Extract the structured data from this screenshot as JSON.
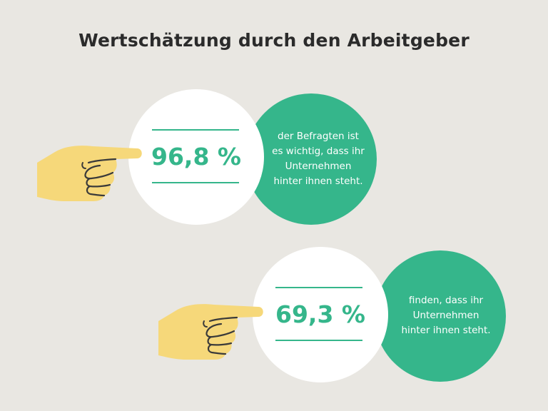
{
  "title": "Wertschätzung durch den Arbeitgeber",
  "stats": [
    {
      "value": "96,8 %",
      "text": "der Befragten ist\nes wichtig, dass ihr\nUnternehmen\nhinter ihnen steht."
    },
    {
      "value": "69,3 %",
      "text": "finden, dass ihr\nUnternehmen\nhinter ihnen steht."
    }
  ],
  "colors": {
    "background": "#e9e7e2",
    "accent_green": "#35b68b",
    "hand_yellow": "#f6d87a",
    "title": "#2b2b2b"
  },
  "icons": [
    "pointing-hand-icon"
  ]
}
